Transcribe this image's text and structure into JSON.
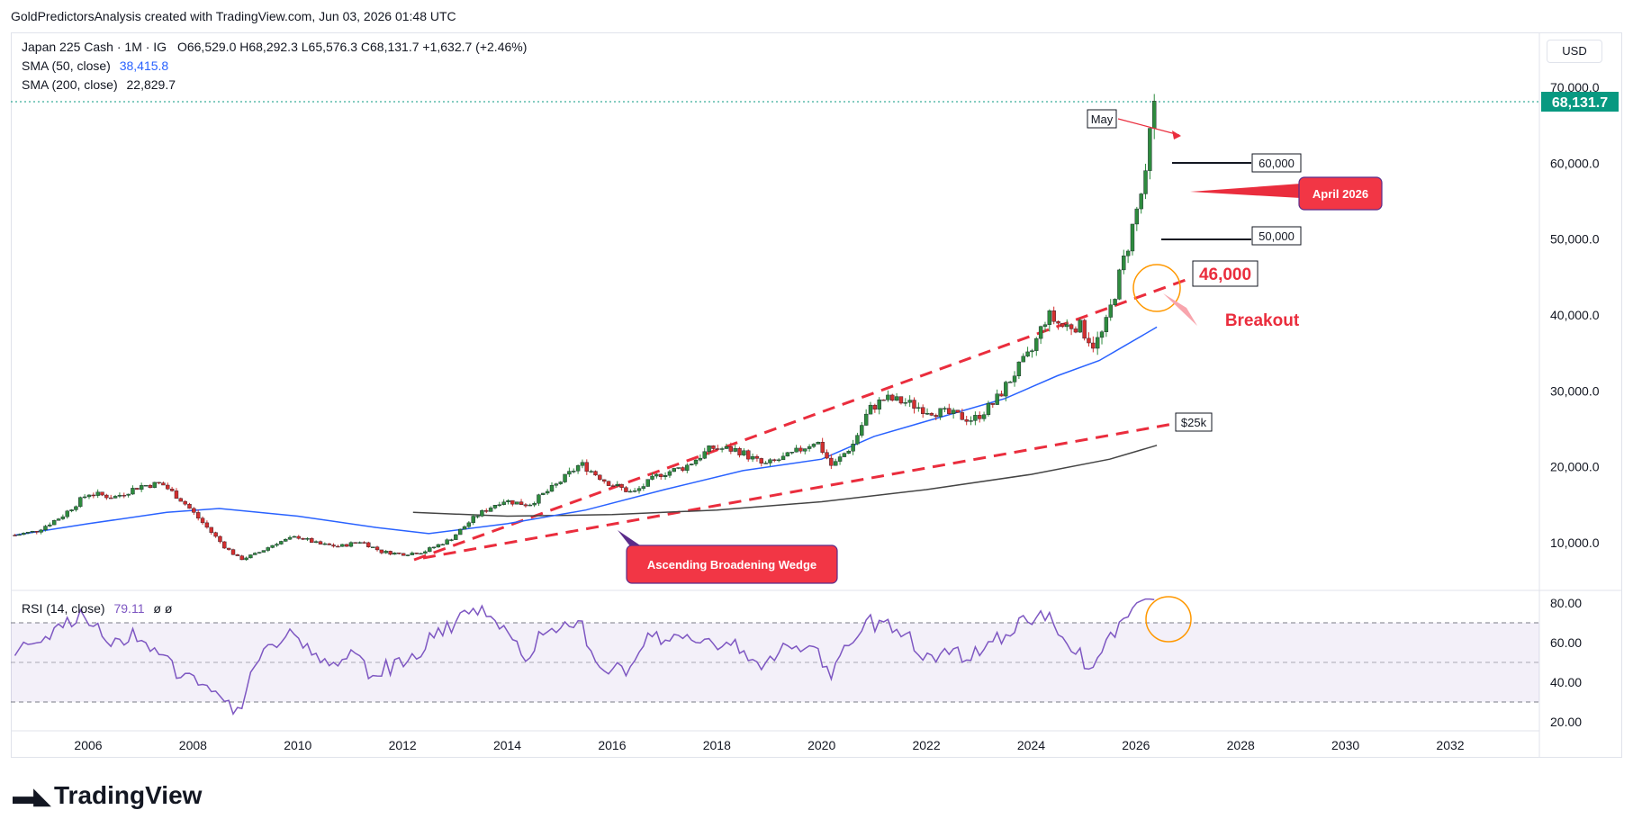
{
  "header": {
    "attribution": "GoldPredictorsAnalysis created with TradingView.com, Jun 03, 2026 01:48 UTC"
  },
  "legend": {
    "symbol": "Japan 225 Cash · 1M · IG",
    "ohlc": "O66,529.0  H68,292.3  L65,576.3  C68,131.7  +1,632.7 (+2.46%)",
    "sma50_label": "SMA (50, close)",
    "sma50_value": "38,415.8",
    "sma200_label": "SMA (200, close)",
    "sma200_value": "22,829.7",
    "rsi_label": "RSI (14, close)",
    "rsi_value": "79.11",
    "rsi_extra": "ø  ø"
  },
  "currency_button": "USD",
  "last_price_badge": "68,131.7",
  "branding": {
    "name": "TradingView"
  },
  "annotations": {
    "may": "May",
    "level_60k": "60,000",
    "level_50k": "50,000",
    "april": "April 2026",
    "level_46k": "46,000",
    "breakout": "Breakout",
    "level_25k": "$25k",
    "wedge": "Ascending Broadening Wedge"
  },
  "colors": {
    "up": "#2e8b3e",
    "down": "#d32f2f",
    "sma50": "#2962ff",
    "sma200": "#444444",
    "rsi": "#7e57c2",
    "wedge_line": "#ea2d3d",
    "callout_bg": "#f23645",
    "price_badge": "#089981"
  },
  "chart_data": {
    "type": "line",
    "title": "Japan 225 Cash · 1M · IG",
    "yaxis_ticks": [
      "70,000.0",
      "60,000.0",
      "50,000.0",
      "40,000.0",
      "30,000.0",
      "20,000.0",
      "10,000.0"
    ],
    "xaxis_ticks": [
      "2006",
      "2008",
      "2010",
      "2012",
      "2014",
      "2016",
      "2018",
      "2020",
      "2022",
      "2024",
      "2026",
      "2028",
      "2030",
      "2032"
    ],
    "rsi_ticks": [
      "80.00",
      "60.00",
      "40.00",
      "20.00"
    ],
    "ylim": [
      0,
      72000
    ],
    "series": [
      {
        "name": "Japan 225 Cash",
        "x": [
          2004.6,
          2005.0,
          2005.5,
          2006.0,
          2006.5,
          2007.0,
          2007.4,
          2007.8,
          2008.2,
          2008.6,
          2008.9,
          2009.2,
          2009.6,
          2010.0,
          2010.4,
          2010.8,
          2011.2,
          2011.6,
          2012.0,
          2012.4,
          2012.9,
          2013.4,
          2013.9,
          2014.4,
          2014.9,
          2015.4,
          2015.9,
          2016.4,
          2016.9,
          2017.4,
          2017.9,
          2018.4,
          2018.9,
          2019.4,
          2019.9,
          2020.2,
          2020.6,
          2020.9,
          2021.2,
          2021.6,
          2022.0,
          2022.4,
          2022.9,
          2023.3,
          2023.7,
          2024.0,
          2024.3,
          2024.6,
          2024.9,
          2025.2,
          2025.4,
          2025.6,
          2025.8,
          2025.95,
          2026.1,
          2026.2,
          2026.3,
          2026.42
        ],
        "values": [
          11000,
          11500,
          13500,
          16500,
          16000,
          17500,
          17800,
          15500,
          12500,
          9500,
          7800,
          8500,
          10000,
          10800,
          9800,
          9500,
          10200,
          8800,
          8500,
          8800,
          10400,
          13500,
          15600,
          15000,
          17400,
          20400,
          18000,
          16500,
          19000,
          20000,
          22500,
          22200,
          20200,
          21500,
          23500,
          20000,
          23000,
          27500,
          29000,
          28500,
          27500,
          27000,
          26200,
          28500,
          32500,
          35000,
          40000,
          38500,
          38700,
          36000,
          38000,
          43000,
          48000,
          52000,
          56000,
          58000,
          66500,
          68131.7
        ]
      },
      {
        "name": "SMA (50, close)",
        "x": [
          2004.6,
          2006.0,
          2007.5,
          2008.5,
          2010.0,
          2011.5,
          2012.5,
          2014.0,
          2015.5,
          2017.0,
          2018.5,
          2020.0,
          2021.0,
          2022.5,
          2023.5,
          2024.5,
          2025.3,
          2025.8,
          2026.4
        ],
        "values": [
          11000,
          12500,
          14000,
          14500,
          13500,
          12000,
          11200,
          12500,
          14300,
          17000,
          19500,
          21000,
          24000,
          27000,
          29000,
          32000,
          34000,
          36000,
          38415.8
        ]
      },
      {
        "name": "SMA (200, close)",
        "x": [
          2012.2,
          2014.0,
          2016.0,
          2018.0,
          2020.0,
          2022.0,
          2024.0,
          2025.5,
          2026.4
        ],
        "values": [
          14000,
          13500,
          13700,
          14300,
          15400,
          17000,
          19000,
          21000,
          22829.7
        ]
      }
    ]
  }
}
